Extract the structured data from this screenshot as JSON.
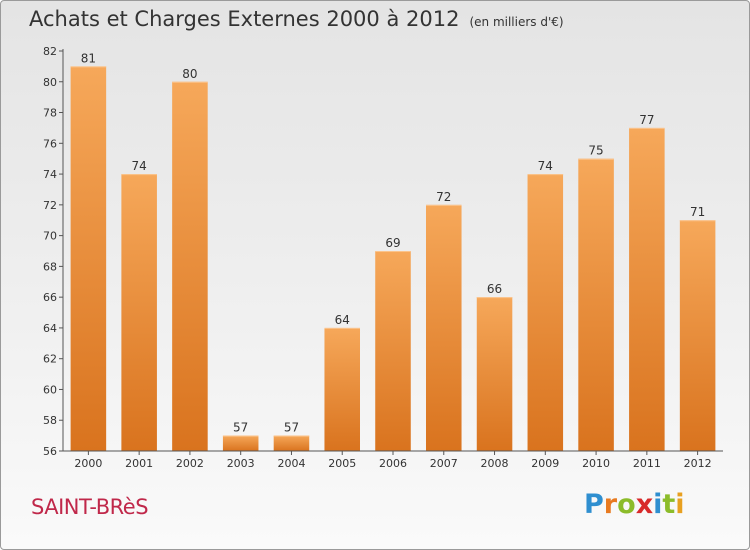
{
  "chart_data": {
    "type": "bar",
    "title": "Achats et Charges Externes 2000 à 2012",
    "subtitle": "(en milliers d'€)",
    "categories": [
      "2000",
      "2001",
      "2002",
      "2003",
      "2004",
      "2005",
      "2006",
      "2007",
      "2008",
      "2009",
      "2010",
      "2011",
      "2012"
    ],
    "values": [
      81,
      74,
      80,
      57,
      57,
      64,
      69,
      72,
      66,
      74,
      75,
      77,
      71
    ],
    "ylim": [
      56,
      82
    ],
    "yticks": [
      56,
      58,
      60,
      62,
      64,
      66,
      68,
      70,
      72,
      74,
      76,
      78,
      80,
      82
    ],
    "grid": false,
    "bar_color": "#f0903a"
  },
  "place": "SAINT-BRèS",
  "brand": {
    "letters": [
      {
        "char": "P",
        "color": "#2f8fd0"
      },
      {
        "char": "r",
        "color": "#e87a20"
      },
      {
        "char": "o",
        "color": "#8cbc2a"
      },
      {
        "char": "x",
        "color": "#d82a2a"
      },
      {
        "char": "i",
        "color": "#2f8fd0"
      },
      {
        "char": "t",
        "color": "#8cbc2a"
      },
      {
        "char": "i",
        "color": "#e8a020"
      }
    ]
  }
}
